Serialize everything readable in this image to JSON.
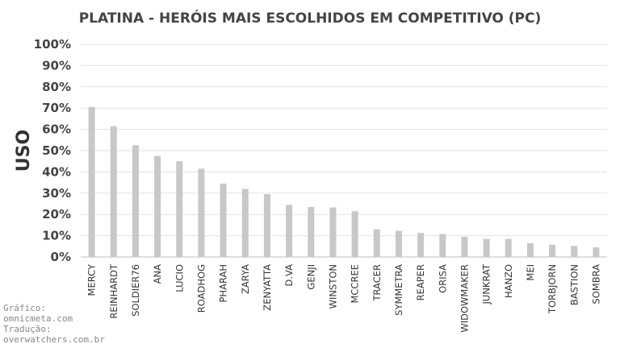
{
  "chart_data": {
    "type": "bar",
    "title": "PLATINA - HERÓIS MAIS ESCOLHIDOS EM COMPETITIVO (PC)",
    "ylabel": "USO",
    "xlabel": "",
    "ylim": [
      0,
      100
    ],
    "yticks": [
      "0%",
      "10%",
      "20%",
      "30%",
      "40%",
      "50%",
      "60%",
      "70%",
      "80%",
      "90%",
      "100%"
    ],
    "grid": true,
    "bar_color": "#c8c8c8",
    "categories": [
      "MERCY",
      "REINHARDT",
      "SOLDIER76",
      "ANA",
      "LUCIO",
      "ROADHOG",
      "PHARAH",
      "ZARYA",
      "ZENYATTA",
      "D.VA",
      "GENJI",
      "WINSTON",
      "MCCREE",
      "TRACER",
      "SYMMETRA",
      "REAPER",
      "ORISA",
      "WIDOWMAKER",
      "JUNKRAT",
      "HANZO",
      "MEI",
      "TORBJORN",
      "BASTION",
      "SOMBRA"
    ],
    "values": [
      70.5,
      61.5,
      52.5,
      47.5,
      45,
      41.5,
      34.5,
      32,
      29.5,
      24.5,
      23.5,
      23.3,
      21.5,
      13,
      12.3,
      11.3,
      10.8,
      9.5,
      8.5,
      8.5,
      6.5,
      5.8,
      5.2,
      4.5
    ]
  },
  "credits": {
    "line1": "Gráfico:",
    "line2": "omnicmeta.com",
    "line3": "Tradução:",
    "line4": "overwatchers.com.br"
  }
}
